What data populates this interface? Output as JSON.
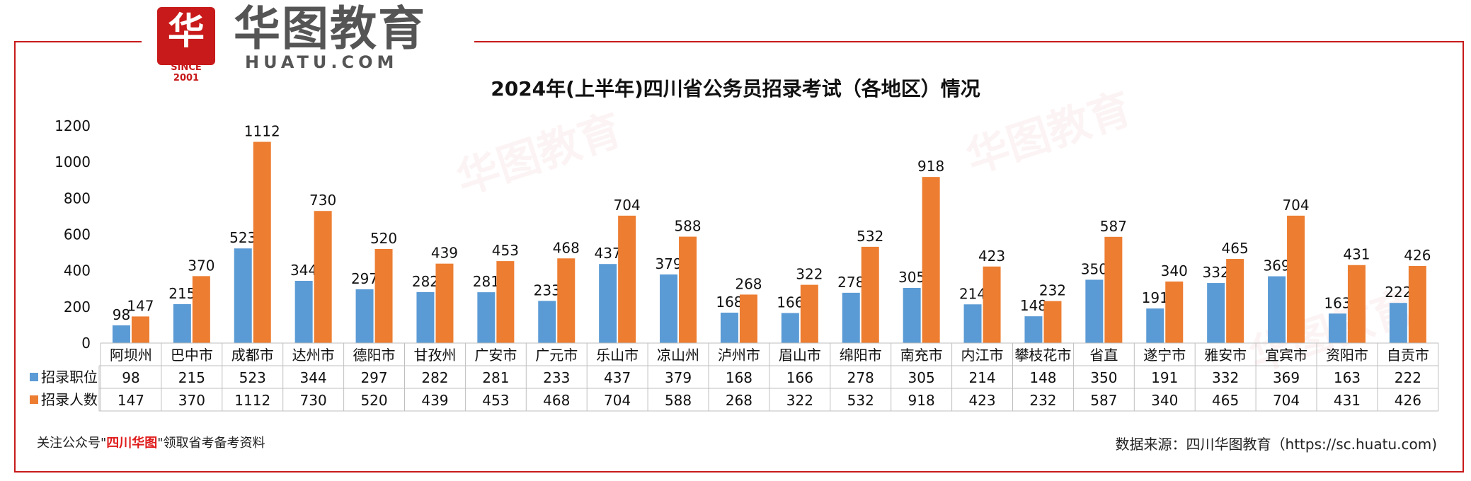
{
  "brand": {
    "glyph": "华",
    "since": "SINCE 2001",
    "name": "华图教育",
    "domain": "HUATU.COM",
    "color": "#c81a1a"
  },
  "footer": {
    "left_prefix": "关注公众号\"",
    "left_highlight": "四川华图",
    "left_suffix": "\"领取省考备考资料",
    "right": "数据来源：四川华图教育（https://sc.huatu.com)"
  },
  "chart_data": {
    "type": "bar",
    "title": "2024年(上半年)四川省公务员招录考试（各地区）情况",
    "categories": [
      "阿坝州",
      "巴中市",
      "成都市",
      "达州市",
      "德阳市",
      "甘孜州",
      "广安市",
      "广元市",
      "乐山市",
      "凉山州",
      "泸州市",
      "眉山市",
      "绵阳市",
      "南充市",
      "内江市",
      "攀枝花市",
      "省直",
      "遂宁市",
      "雅安市",
      "宜宾市",
      "资阳市",
      "自贡市"
    ],
    "series": [
      {
        "name": "招录职位",
        "color": "#5b9bd5",
        "values": [
          98,
          215,
          523,
          344,
          297,
          282,
          281,
          233,
          437,
          379,
          168,
          166,
          278,
          305,
          214,
          148,
          350,
          191,
          332,
          369,
          163,
          222
        ]
      },
      {
        "name": "招录人数",
        "color": "#ed7d31",
        "values": [
          147,
          370,
          1112,
          730,
          520,
          439,
          453,
          468,
          704,
          588,
          268,
          322,
          532,
          918,
          423,
          232,
          587,
          340,
          465,
          704,
          431,
          426
        ]
      }
    ],
    "ylim": [
      0,
      1200
    ],
    "yticks": [
      0,
      200,
      400,
      600,
      800,
      1000,
      1200
    ],
    "grid": false,
    "legend": "data-table"
  }
}
